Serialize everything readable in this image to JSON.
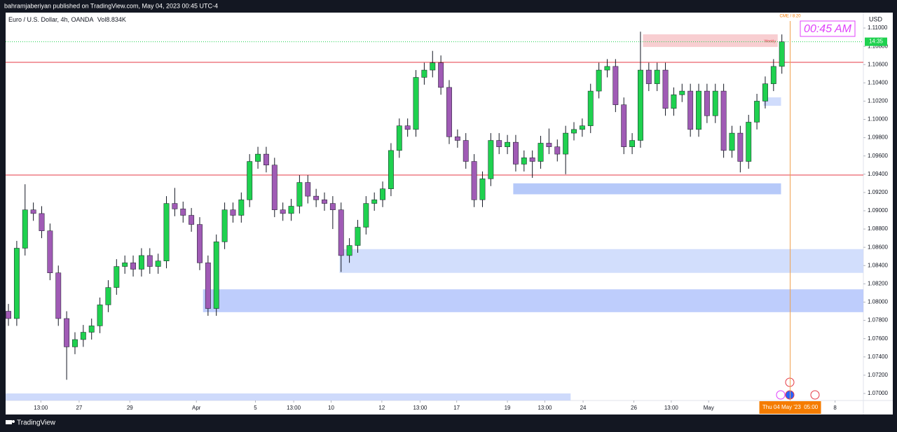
{
  "header": "bahramjaberiyan published on TradingView.com, May 04, 2023 00:45 UTC-4",
  "footer": "TradingView",
  "chart_data": {
    "type": "candlestick",
    "symbol": "Euro / U.S. Dollar, 4h, OANDA",
    "volume_label": "Vol",
    "volume": "8.834K",
    "currency": "USD",
    "clock": "00:45 AM",
    "event_label": "CME / 8:20",
    "event_x": 94.0,
    "cursor_time": "Thu 04 May '23  05:00",
    "last_price": 1.1085,
    "last_price_countdown": "14:35",
    "up_color": "#1fd14f",
    "down_color": "#a05bb5",
    "xlim": [
      -0.34,
      102.8
    ],
    "ylim": [
      1.06923,
      1.11169
    ],
    "grid": false,
    "yticks": [
      {
        "value": 1.07,
        "label": "1.07000"
      },
      {
        "value": 1.072,
        "label": "1.07200"
      },
      {
        "value": 1.074,
        "label": "1.07400"
      },
      {
        "value": 1.076,
        "label": "1.07600"
      },
      {
        "value": 1.078,
        "label": "1.07800"
      },
      {
        "value": 1.08,
        "label": "1.08000"
      },
      {
        "value": 1.082,
        "label": "1.08200"
      },
      {
        "value": 1.084,
        "label": "1.08400"
      },
      {
        "value": 1.086,
        "label": "1.08600"
      },
      {
        "value": 1.088,
        "label": "1.08800"
      },
      {
        "value": 1.09,
        "label": "1.09000"
      },
      {
        "value": 1.092,
        "label": "1.09200"
      },
      {
        "value": 1.094,
        "label": "1.09400"
      },
      {
        "value": 1.096,
        "label": "1.09600"
      },
      {
        "value": 1.098,
        "label": "1.09800"
      },
      {
        "value": 1.1,
        "label": "1.10000"
      },
      {
        "value": 1.102,
        "label": "1.10200"
      },
      {
        "value": 1.104,
        "label": "1.10400"
      },
      {
        "value": 1.106,
        "label": "1.10600"
      },
      {
        "value": 1.108,
        "label": "1.10800"
      },
      {
        "value": 1.11,
        "label": "1.11000"
      }
    ],
    "xticks": [
      {
        "value": 3.9,
        "label": "13:00"
      },
      {
        "value": 8.5,
        "label": "27"
      },
      {
        "value": 14.6,
        "label": "29"
      },
      {
        "value": 22.6,
        "label": "Apr"
      },
      {
        "value": 29.7,
        "label": "5"
      },
      {
        "value": 34.3,
        "label": "13:00"
      },
      {
        "value": 38.8,
        "label": "10"
      },
      {
        "value": 44.9,
        "label": "12"
      },
      {
        "value": 49.5,
        "label": "13:00"
      },
      {
        "value": 53.9,
        "label": "17"
      },
      {
        "value": 60.0,
        "label": "19"
      },
      {
        "value": 64.5,
        "label": "13:00"
      },
      {
        "value": 69.1,
        "label": "24"
      },
      {
        "value": 75.2,
        "label": "26"
      },
      {
        "value": 79.7,
        "label": "13:00"
      },
      {
        "value": 84.2,
        "label": "May"
      },
      {
        "value": 99.4,
        "label": "8"
      }
    ],
    "levels": [
      {
        "value": 1.10625,
        "color": "#e53945"
      },
      {
        "value": 1.09391,
        "color": "#e53945"
      }
    ],
    "zones": [
      {
        "from": 76.3,
        "to": 92.5,
        "top": 1.10931,
        "bottom": 1.10793,
        "color": "#f7c6c9",
        "label": "Weekly"
      },
      {
        "from": 90.8,
        "to": 92.9,
        "top": 1.10241,
        "bottom": 1.10149,
        "color": "#c8d6fb"
      },
      {
        "from": 60.7,
        "to": 92.9,
        "top": 1.093,
        "bottom": 1.0918,
        "color": "#a9bff8"
      },
      {
        "from": 39.8,
        "to": 102.8,
        "top": 1.0858,
        "bottom": 1.0832,
        "color": "#cad8fc"
      },
      {
        "from": 23.4,
        "to": 102.8,
        "top": 1.0814,
        "bottom": 1.0789,
        "color": "#b3c4fb"
      },
      {
        "from": -0.34,
        "to": 67.6,
        "top": 1.07,
        "bottom": 1.06923,
        "color": "#c5d3fa"
      }
    ],
    "open": [
      1.079,
      1.0782,
      1.0859,
      1.0901,
      1.0897,
      1.0878,
      1.0832,
      1.0782,
      1.0751,
      1.0759,
      1.0767,
      1.0774,
      1.0797,
      1.0816,
      1.0839,
      1.0843,
      1.0836,
      1.0851,
      1.0839,
      1.0845,
      1.0908,
      1.0902,
      1.0895,
      1.0885,
      1.0843,
      1.0793,
      1.0866,
      1.0901,
      1.0895,
      1.0912,
      1.0954,
      1.0962,
      1.095,
      1.0901,
      1.0897,
      1.0905,
      1.0931,
      1.0916,
      1.0912,
      1.0908,
      1.0901,
      1.0851,
      1.0862,
      1.0882,
      1.0908,
      1.0912,
      1.0924,
      1.0966,
      1.0993,
      1.0989,
      1.1046,
      1.1054,
      1.1062,
      1.1035,
      1.0981,
      1.0977,
      1.0954,
      1.0912,
      1.0935,
      1.0977,
      1.097,
      1.0975,
      1.0951,
      1.0958,
      1.0954,
      1.0974,
      1.097,
      1.0962,
      1.0985,
      1.0989,
      1.0993,
      1.1031,
      1.1054,
      1.1058,
      1.1016,
      1.097,
      1.0977,
      1.1054,
      1.1039,
      1.1054,
      1.1012,
      1.1027,
      1.1031,
      1.0989,
      1.1031,
      1.1004,
      1.1031,
      1.0966,
      1.0985,
      1.0954,
      1.0997,
      1.102,
      1.1039,
      1.1058
    ],
    "high": [
      1.0798,
      1.0867,
      1.0929,
      1.0909,
      1.0905,
      1.0886,
      1.084,
      1.079,
      1.0767,
      1.0775,
      1.0782,
      1.0805,
      1.0824,
      1.0847,
      1.0851,
      1.0851,
      1.0859,
      1.0859,
      1.0853,
      1.0916,
      1.0925,
      1.091,
      1.0903,
      1.0893,
      1.0851,
      1.0874,
      1.0909,
      1.0909,
      1.092,
      1.0962,
      1.097,
      1.097,
      1.0958,
      1.0909,
      1.0913,
      1.0939,
      1.0939,
      1.0924,
      1.092,
      1.0916,
      1.0909,
      1.087,
      1.089,
      1.0916,
      1.092,
      1.0932,
      1.0974,
      1.1001,
      1.1001,
      1.1054,
      1.1062,
      1.1075,
      1.107,
      1.1043,
      1.0989,
      1.0985,
      1.0962,
      1.0943,
      1.0985,
      1.0985,
      1.0983,
      1.0983,
      1.0966,
      1.0966,
      1.0982,
      1.099,
      1.0978,
      1.0993,
      1.0997,
      1.1001,
      1.1039,
      1.1062,
      1.1066,
      1.1066,
      1.1024,
      1.0985,
      1.1096,
      1.1062,
      1.1062,
      1.1062,
      1.1035,
      1.1039,
      1.1039,
      1.1039,
      1.1039,
      1.1039,
      1.1039,
      1.0993,
      1.0993,
      1.1005,
      1.1028,
      1.1047,
      1.1066,
      1.1093
    ],
    "low": [
      1.0774,
      1.0774,
      1.0851,
      1.0889,
      1.087,
      1.0824,
      1.0774,
      1.0715,
      1.0743,
      1.0751,
      1.0759,
      1.0766,
      1.0789,
      1.0808,
      1.0831,
      1.0828,
      1.0828,
      1.0831,
      1.0831,
      1.0837,
      1.0894,
      1.0887,
      1.0877,
      1.0835,
      1.0785,
      1.0785,
      1.0858,
      1.0887,
      1.0887,
      1.0904,
      1.0946,
      1.0942,
      1.0893,
      1.0889,
      1.0889,
      1.0897,
      1.0908,
      1.0904,
      1.09,
      1.088,
      1.0833,
      1.0843,
      1.0854,
      1.0874,
      1.09,
      1.0904,
      1.0916,
      1.0958,
      1.0981,
      1.0981,
      1.1038,
      1.1046,
      1.1027,
      1.0973,
      1.0969,
      1.0946,
      1.0904,
      1.0904,
      1.0927,
      1.0962,
      1.0962,
      1.0943,
      1.0943,
      1.0936,
      1.0946,
      1.0962,
      1.0954,
      1.094,
      1.0977,
      1.0981,
      1.0985,
      1.1023,
      1.1046,
      1.1008,
      1.0962,
      1.0962,
      1.0969,
      1.1031,
      1.1031,
      1.1004,
      1.1004,
      1.1019,
      1.0981,
      1.0981,
      1.0996,
      1.0996,
      1.0958,
      1.0958,
      1.0942,
      1.0946,
      1.0989,
      1.1012,
      1.1031,
      1.105
    ],
    "close": [
      1.0782,
      1.0859,
      1.0901,
      1.0897,
      1.0878,
      1.0832,
      1.0782,
      1.0751,
      1.0759,
      1.0767,
      1.0774,
      1.0797,
      1.0816,
      1.0839,
      1.0843,
      1.0836,
      1.0851,
      1.0839,
      1.0845,
      1.0908,
      1.0902,
      1.0895,
      1.0885,
      1.0843,
      1.0793,
      1.0866,
      1.0901,
      1.0895,
      1.0912,
      1.0954,
      1.0962,
      1.095,
      1.0901,
      1.0897,
      1.0905,
      1.0931,
      1.0916,
      1.0912,
      1.0908,
      1.0901,
      1.0851,
      1.0862,
      1.0882,
      1.0908,
      1.0912,
      1.0924,
      1.0966,
      1.0993,
      1.0989,
      1.1046,
      1.1054,
      1.1062,
      1.1035,
      1.0981,
      1.0977,
      1.0954,
      1.0912,
      1.0935,
      1.0977,
      1.097,
      1.0975,
      1.0951,
      1.0958,
      1.0954,
      1.0974,
      1.097,
      1.0962,
      1.0985,
      1.0989,
      1.0993,
      1.1031,
      1.1054,
      1.1058,
      1.1016,
      1.097,
      1.0977,
      1.1054,
      1.1039,
      1.1054,
      1.1012,
      1.1027,
      1.1031,
      1.0989,
      1.1031,
      1.1004,
      1.1031,
      1.0966,
      1.0985,
      1.0954,
      1.0997,
      1.102,
      1.1039,
      1.1058,
      1.1085
    ]
  }
}
